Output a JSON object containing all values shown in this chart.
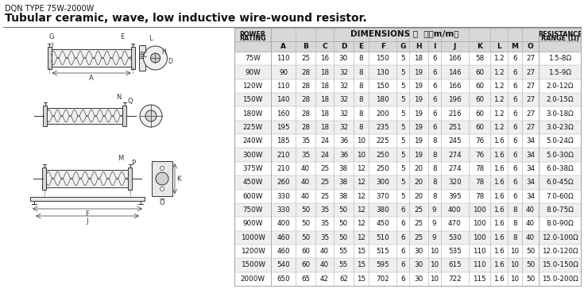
{
  "title1": "DQN TYPE 75W-2000W",
  "title2": "Tubular ceramic, wave, low inductive wire-wound resistor.",
  "rows": [
    [
      "75W",
      "110",
      "25",
      "16",
      "30",
      "8",
      "150",
      "5",
      "18",
      "6",
      "166",
      "58",
      "1.2",
      "6",
      "27",
      "1.5-8Ω"
    ],
    [
      "90W",
      "90",
      "28",
      "18",
      "32",
      "8",
      "130",
      "5",
      "19",
      "6",
      "146",
      "60",
      "1.2",
      "6",
      "27",
      "1.5-9Ω"
    ],
    [
      "120W",
      "110",
      "28",
      "18",
      "32",
      "8",
      "150",
      "5",
      "19",
      "6",
      "166",
      "60",
      "1.2",
      "6",
      "27",
      "2.0-12Ω"
    ],
    [
      "150W",
      "140",
      "28",
      "18",
      "32",
      "8",
      "180",
      "5",
      "19",
      "6",
      "196",
      "60",
      "1.2",
      "6",
      "27",
      "2.0-15Ω"
    ],
    [
      "180W",
      "160",
      "28",
      "18",
      "32",
      "8",
      "200",
      "5",
      "19",
      "6",
      "216",
      "60",
      "1.2",
      "6",
      "27",
      "3.0-18Ω"
    ],
    [
      "225W",
      "195",
      "28",
      "18",
      "32",
      "8",
      "235",
      "5",
      "19",
      "6",
      "251",
      "60",
      "1.2",
      "6",
      "27",
      "3.0-23Ω"
    ],
    [
      "240W",
      "185",
      "35",
      "24",
      "36",
      "10",
      "225",
      "5",
      "19",
      "8",
      "245",
      "76",
      "1.6",
      "6",
      "34",
      "5.0-24Ω"
    ],
    [
      "300W",
      "210",
      "35",
      "24",
      "36",
      "10",
      "250",
      "5",
      "19",
      "8",
      "274",
      "76",
      "1.6",
      "6",
      "34",
      "5.0-30Ω"
    ],
    [
      "375W",
      "210",
      "40",
      "25",
      "38",
      "12",
      "250",
      "5",
      "20",
      "8",
      "274",
      "78",
      "1.6",
      "6",
      "34",
      "6.0-38Ω"
    ],
    [
      "450W",
      "260",
      "40",
      "25",
      "38",
      "12",
      "300",
      "5",
      "20",
      "8",
      "320",
      "78",
      "1.6",
      "6",
      "34",
      "6.0-45Ω"
    ],
    [
      "600W",
      "330",
      "40",
      "25",
      "38",
      "12",
      "370",
      "5",
      "20",
      "8",
      "395",
      "78",
      "1.6",
      "6",
      "34",
      "7.0-60Ω"
    ],
    [
      "750W",
      "330",
      "50",
      "35",
      "50",
      "12",
      "380",
      "6",
      "25",
      "9",
      "400",
      "100",
      "1.6",
      "8",
      "40",
      "8.0-75Ω"
    ],
    [
      "900W",
      "400",
      "50",
      "35",
      "50",
      "12",
      "450",
      "6",
      "25",
      "9",
      "470",
      "100",
      "1.6",
      "8",
      "40",
      "8.0-90Ω"
    ],
    [
      "1000W",
      "460",
      "50",
      "35",
      "50",
      "12",
      "510",
      "6",
      "25",
      "9",
      "530",
      "100",
      "1.6",
      "8",
      "40",
      "12.0-100Ω"
    ],
    [
      "1200W",
      "460",
      "60",
      "40",
      "55",
      "15",
      "515",
      "6",
      "30",
      "10",
      "535",
      "110",
      "1.6",
      "10",
      "50",
      "12.0-120Ω"
    ],
    [
      "1500W",
      "540",
      "60",
      "40",
      "55",
      "15",
      "595",
      "6",
      "30",
      "10",
      "615",
      "110",
      "1.6",
      "10",
      "50",
      "15.0-150Ω"
    ],
    [
      "2000W",
      "650",
      "65",
      "42",
      "62",
      "15",
      "702",
      "6",
      "30",
      "10",
      "722",
      "115",
      "1.6",
      "10",
      "50",
      "15.0-200Ω"
    ]
  ],
  "bg_color": "#ffffff",
  "table_bg_even": "#ffffff",
  "table_bg_odd": "#efefef",
  "header_bg": "#d8d8d8",
  "border_color": "#aaaaaa",
  "text_color": "#111111",
  "lc": "#333333"
}
